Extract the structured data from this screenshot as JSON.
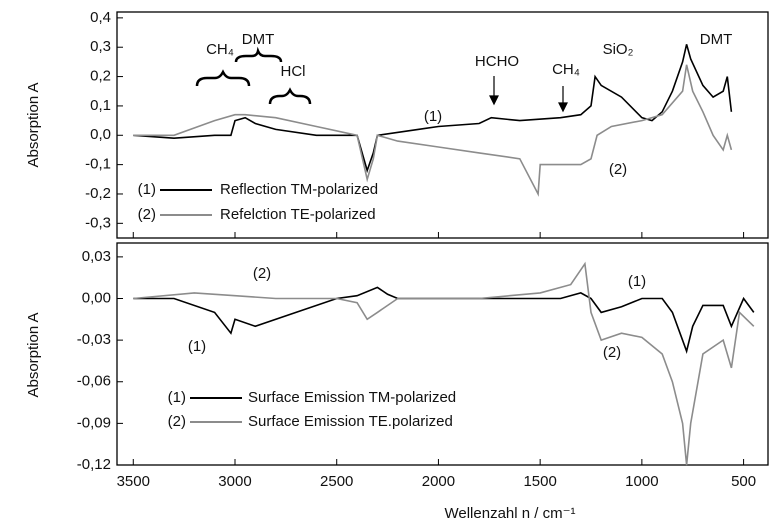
{
  "chart_data": [
    {
      "type": "line",
      "ylabel": "Absorption A",
      "ylim": [
        -0.35,
        0.42
      ],
      "xlim": [
        3580,
        380
      ],
      "yticks": [
        {
          "value": 0.4,
          "label": "0,4"
        },
        {
          "value": 0.3,
          "label": "0,3"
        },
        {
          "value": 0.2,
          "label": "0,2"
        },
        {
          "value": 0.1,
          "label": "0,1"
        },
        {
          "value": 0,
          "label": "0,0"
        },
        {
          "value": -0.1,
          "label": "-0,1"
        },
        {
          "value": -0.2,
          "label": "-0,2"
        },
        {
          "value": -0.3,
          "label": "-0,3"
        }
      ],
      "annotations": [
        "CH₄",
        "DMT",
        "HCl",
        "HCHO",
        "CH₄",
        "SiO₂",
        "DMT",
        "(1)",
        "(2)"
      ],
      "series": [
        {
          "label": "(1)",
          "name": "Reflection TM-polarized",
          "color": "#000000",
          "x": [
            3500,
            3300,
            3100,
            3020,
            3000,
            2950,
            2900,
            2800,
            2600,
            2400,
            2350,
            2320,
            2300,
            2100,
            2000,
            1800,
            1740,
            1600,
            1400,
            1300,
            1250,
            1230,
            1200,
            1100,
            1000,
            950,
            900,
            850,
            800,
            780,
            760,
            700,
            650,
            600,
            580,
            560
          ],
          "values": [
            0,
            -0.01,
            0,
            0,
            0.05,
            0.06,
            0.04,
            0.02,
            0,
            0,
            -0.12,
            -0.06,
            0,
            0.02,
            0.03,
            0.04,
            0.06,
            0.05,
            0.06,
            0.07,
            0.1,
            0.2,
            0.17,
            0.13,
            0.06,
            0.05,
            0.08,
            0.15,
            0.25,
            0.31,
            0.26,
            0.17,
            0.13,
            0.15,
            0.2,
            0.08
          ]
        },
        {
          "label": "(2)",
          "name": "Refelction TE-polarized",
          "color": "#8c8c8c",
          "x": [
            3500,
            3300,
            3100,
            3000,
            2950,
            2800,
            2600,
            2400,
            2350,
            2320,
            2300,
            2200,
            2000,
            1800,
            1600,
            1510,
            1500,
            1300,
            1250,
            1220,
            1150,
            1000,
            900,
            800,
            780,
            750,
            700,
            650,
            600,
            580,
            560
          ],
          "values": [
            0,
            0,
            0.05,
            0.07,
            0.07,
            0.06,
            0.03,
            0,
            -0.15,
            -0.08,
            0,
            -0.02,
            -0.04,
            -0.06,
            -0.08,
            -0.2,
            -0.1,
            -0.1,
            -0.08,
            0,
            0.03,
            0.05,
            0.07,
            0.15,
            0.24,
            0.15,
            0.08,
            0,
            -0.05,
            0,
            -0.05
          ]
        }
      ]
    },
    {
      "type": "line",
      "ylabel": "Absorption A",
      "xlabel": "Wellenzahl n / cm⁻¹",
      "ylim": [
        -0.12,
        0.04
      ],
      "xlim": [
        3580,
        380
      ],
      "yticks": [
        {
          "value": 0.03,
          "label": "0,03"
        },
        {
          "value": 0,
          "label": "0,00"
        },
        {
          "value": -0.03,
          "label": "-0,03"
        },
        {
          "value": -0.06,
          "label": "-0,06"
        },
        {
          "value": -0.09,
          "label": "-0,09"
        },
        {
          "value": -0.12,
          "label": "-0,12"
        }
      ],
      "xticks": [
        3500,
        3000,
        2500,
        2000,
        1500,
        1000,
        500
      ],
      "annotations": [
        "(2)",
        "(1)",
        "(1)",
        "(2)"
      ],
      "series": [
        {
          "label": "(1)",
          "name": "Surface Emission TM-polarized",
          "color": "#000000",
          "x": [
            3500,
            3300,
            3100,
            3020,
            3000,
            2900,
            2700,
            2500,
            2400,
            2300,
            2250,
            2200,
            1800,
            1400,
            1300,
            1250,
            1200,
            1100,
            1000,
            900,
            850,
            780,
            750,
            700,
            600,
            560,
            500,
            450
          ],
          "values": [
            0,
            0,
            -0.01,
            -0.025,
            -0.015,
            -0.02,
            -0.01,
            0,
            0.002,
            0.008,
            0.003,
            0,
            0,
            0,
            0.004,
            0,
            -0.01,
            -0.006,
            0,
            0,
            -0.01,
            -0.038,
            -0.02,
            -0.005,
            -0.005,
            -0.02,
            0,
            -0.01
          ]
        },
        {
          "label": "(2)",
          "name": "Surface Emission TE.polarized",
          "color": "#8c8c8c",
          "x": [
            3500,
            3200,
            3000,
            2800,
            2500,
            2400,
            2350,
            2300,
            2200,
            1800,
            1500,
            1350,
            1280,
            1250,
            1200,
            1100,
            1000,
            900,
            850,
            800,
            780,
            760,
            700,
            600,
            560,
            520,
            450
          ],
          "values": [
            0,
            0.004,
            0.002,
            0,
            0,
            -0.003,
            -0.015,
            -0.01,
            0,
            0,
            0.004,
            0.01,
            0.025,
            -0.01,
            -0.03,
            -0.025,
            -0.028,
            -0.04,
            -0.06,
            -0.09,
            -0.12,
            -0.09,
            -0.04,
            -0.03,
            -0.05,
            -0.01,
            -0.02
          ]
        }
      ]
    }
  ]
}
